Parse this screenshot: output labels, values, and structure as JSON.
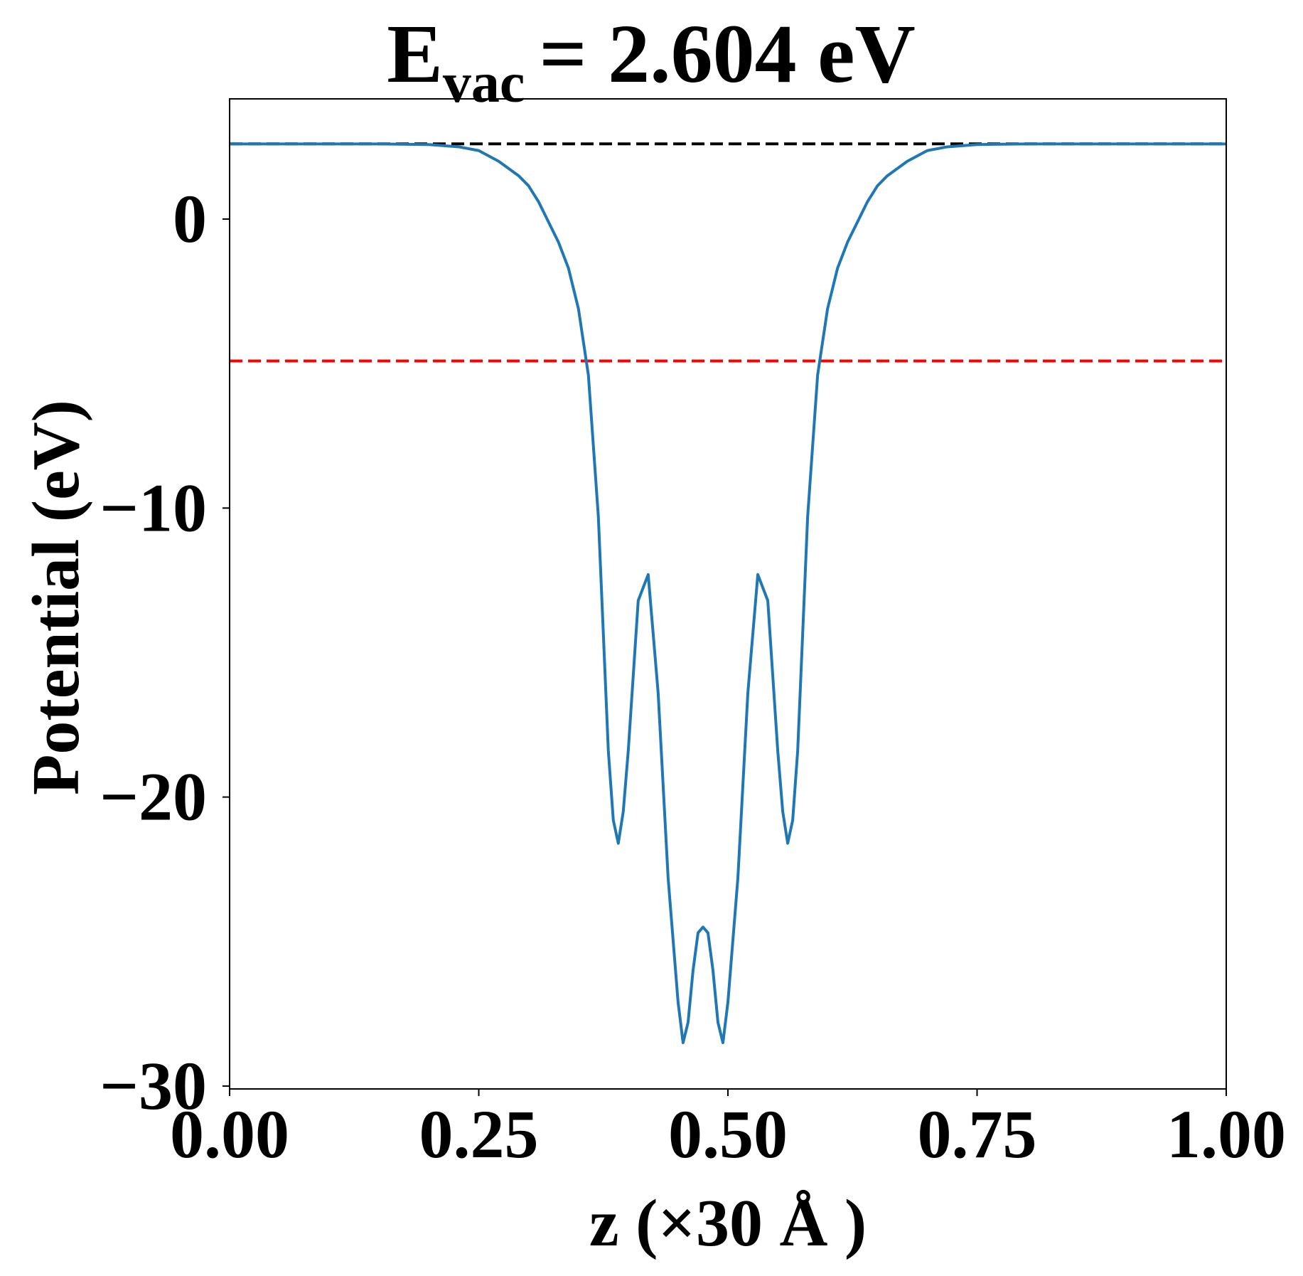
{
  "chart_data": {
    "type": "line",
    "title_main": "E",
    "title_sub": "vac",
    "title_rest": "= 2.604 eV",
    "x_label": "z (×30 Å )",
    "y_label": "Potential (eV)",
    "xlim": [
      0,
      1
    ],
    "ylim": [
      -30.1,
      4.16
    ],
    "xticks": [
      {
        "value": 0,
        "label": "0.00"
      },
      {
        "value": 0.25,
        "label": "0.25"
      },
      {
        "value": 0.5,
        "label": "0.50"
      },
      {
        "value": 0.75,
        "label": "0.75"
      },
      {
        "value": 1,
        "label": "1.00"
      }
    ],
    "yticks": [
      {
        "value": -30,
        "label": "−30"
      },
      {
        "value": -20,
        "label": "−20"
      },
      {
        "value": -10,
        "label": "−10"
      },
      0
    ],
    "hlines": [
      {
        "value": 2.604,
        "color": "#000000"
      },
      {
        "value": -4.91,
        "color": "#ff0000"
      }
    ],
    "series": [
      {
        "color": "#1f77b4",
        "x": [
          0,
          0.05,
          0.1,
          0.15,
          0.2,
          0.23,
          0.25,
          0.27,
          0.29,
          0.3,
          0.31,
          0.32,
          0.33,
          0.34,
          0.35,
          0.36,
          0.37,
          0.38,
          0.385,
          0.39,
          0.395,
          0.4,
          0.41,
          0.42,
          0.43,
          0.44,
          0.45,
          0.455,
          0.46,
          0.465,
          0.47,
          0.475,
          0.48,
          0.485,
          0.49,
          0.495,
          0.5,
          0.51,
          0.52,
          0.53,
          0.54,
          0.55,
          0.555,
          0.56,
          0.565,
          0.57,
          0.58,
          0.59,
          0.6,
          0.61,
          0.62,
          0.63,
          0.64,
          0.65,
          0.66,
          0.68,
          0.7,
          0.72,
          0.75,
          0.8,
          0.85,
          0.9,
          0.95,
          1.0
        ],
        "values": [
          2.6,
          2.6,
          2.6,
          2.6,
          2.58,
          2.5,
          2.37,
          2.0,
          1.5,
          1.15,
          0.6,
          -0.1,
          -0.8,
          -1.7,
          -3.1,
          -5.4,
          -10.3,
          -18.4,
          -20.8,
          -21.6,
          -20.5,
          -18.4,
          -13.2,
          -12.3,
          -16.4,
          -22.8,
          -27.1,
          -28.5,
          -27.8,
          -26.0,
          -24.7,
          -24.5,
          -24.7,
          -26.0,
          -27.8,
          -28.5,
          -27.1,
          -22.8,
          -16.4,
          -12.3,
          -13.2,
          -18.4,
          -20.5,
          -21.6,
          -20.8,
          -18.4,
          -10.3,
          -5.4,
          -3.1,
          -1.7,
          -0.8,
          -0.1,
          0.6,
          1.15,
          1.5,
          2.0,
          2.37,
          2.5,
          2.58,
          2.6,
          2.6,
          2.6,
          2.6,
          2.6
        ]
      }
    ]
  }
}
